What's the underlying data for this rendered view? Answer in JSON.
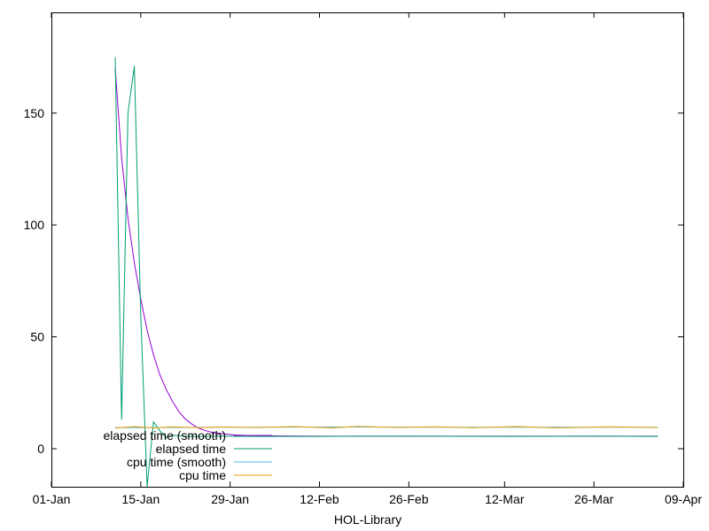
{
  "chart_data": {
    "type": "line",
    "title": "",
    "xlabel": "HOL-Library",
    "ylabel": "",
    "x_range": [
      "2020-01-01",
      "2020-04-09"
    ],
    "ylim": [
      -17,
      195
    ],
    "x_ticks": [
      {
        "date": "2020-01-01",
        "label": "01-Jan"
      },
      {
        "date": "2020-01-15",
        "label": "15-Jan"
      },
      {
        "date": "2020-01-29",
        "label": "29-Jan"
      },
      {
        "date": "2020-02-12",
        "label": "12-Feb"
      },
      {
        "date": "2020-02-26",
        "label": "26-Feb"
      },
      {
        "date": "2020-03-12",
        "label": "12-Mar"
      },
      {
        "date": "2020-03-26",
        "label": "26-Mar"
      },
      {
        "date": "2020-04-09",
        "label": "09-Apr"
      }
    ],
    "y_ticks": [
      0,
      50,
      100,
      150
    ],
    "grid": false,
    "legend_position": "bottom-left",
    "series": [
      {
        "name": "elapsed time (smooth)",
        "color": "#9400d3",
        "x": [
          "2020-01-11",
          "2020-01-12",
          "2020-01-13",
          "2020-01-14",
          "2020-01-15",
          "2020-01-16",
          "2020-01-17",
          "2020-01-18",
          "2020-01-19",
          "2020-01-20",
          "2020-01-21",
          "2020-01-22",
          "2020-01-23",
          "2020-01-24",
          "2020-01-25",
          "2020-01-26",
          "2020-01-28",
          "2020-01-30",
          "2020-02-02",
          "2020-02-06",
          "2020-02-12",
          "2020-02-20",
          "2020-03-01",
          "2020-03-12",
          "2020-03-25",
          "2020-04-05"
        ],
        "values": [
          170,
          130,
          103,
          83,
          67,
          53,
          42,
          33,
          26.5,
          21,
          16.5,
          13.2,
          11,
          9.3,
          8.2,
          7.4,
          6.6,
          6.1,
          5.8,
          5.7,
          5.6,
          5.6,
          5.6,
          5.6,
          5.6,
          5.6
        ]
      },
      {
        "name": "elapsed time",
        "color": "#009e73",
        "x": [
          "2020-01-11",
          "2020-01-12",
          "2020-01-13",
          "2020-01-14",
          "2020-01-15",
          "2020-01-16",
          "2020-01-17",
          "2020-01-18",
          "2020-01-19",
          "2020-01-20",
          "2020-01-22",
          "2020-01-25",
          "2020-01-28",
          "2020-02-02",
          "2020-02-12",
          "2020-02-26",
          "2020-03-12",
          "2020-03-26",
          "2020-04-05"
        ],
        "values": [
          175,
          13,
          150,
          171,
          60,
          -17,
          12,
          8,
          5,
          6,
          5.5,
          5.5,
          5.6,
          5.5,
          5.5,
          5.6,
          5.5,
          5.6,
          5.5
        ]
      },
      {
        "name": "cpu time (smooth)",
        "color": "#56b4e9",
        "x": [
          "2020-01-11",
          "2020-01-20",
          "2020-02-01",
          "2020-02-15",
          "2020-03-01",
          "2020-03-15",
          "2020-04-05"
        ],
        "values": [
          9.4,
          9.5,
          9.6,
          9.7,
          9.6,
          9.6,
          9.6
        ]
      },
      {
        "name": "cpu time",
        "color": "#e69f00",
        "x": [
          "2020-01-11",
          "2020-01-14",
          "2020-01-17",
          "2020-01-20",
          "2020-01-24",
          "2020-01-28",
          "2020-02-02",
          "2020-02-08",
          "2020-02-14",
          "2020-02-18",
          "2020-02-24",
          "2020-03-01",
          "2020-03-07",
          "2020-03-14",
          "2020-03-20",
          "2020-03-28",
          "2020-04-05"
        ],
        "values": [
          9.2,
          9.9,
          9.3,
          9.8,
          9.4,
          9.7,
          9.5,
          9.9,
          9.3,
          10.0,
          9.5,
          9.8,
          9.4,
          9.9,
          9.3,
          9.8,
          9.5
        ]
      }
    ]
  }
}
